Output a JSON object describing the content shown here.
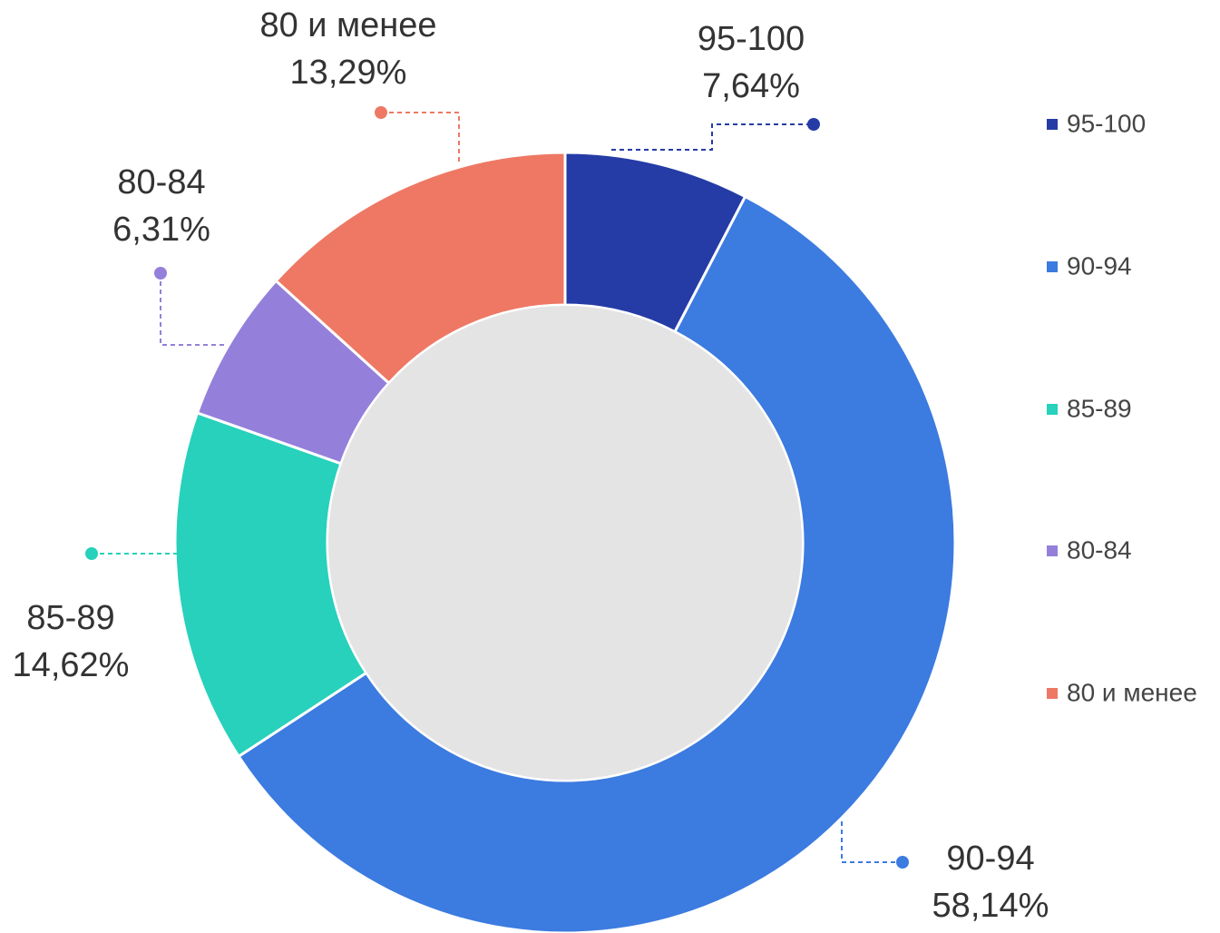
{
  "chart_data": {
    "type": "donut",
    "categories": [
      "95-100",
      "90-94",
      "85-89",
      "80-84",
      "80 и менее"
    ],
    "values": [
      7.64,
      58.14,
      14.62,
      6.31,
      13.29
    ],
    "value_labels": [
      "7,64%",
      "58,14%",
      "14,62%",
      "6,31%",
      "13,29%"
    ],
    "colors": [
      "#253ca6",
      "#3c7be0",
      "#27d1bb",
      "#9480db",
      "#ee7864"
    ],
    "legend": "right"
  }
}
